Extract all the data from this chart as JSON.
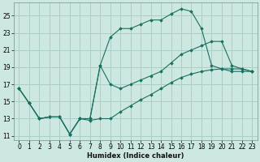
{
  "xlabel": "Humidex (Indice chaleur)",
  "background_color": "#cce8e0",
  "grid_color": "#aacfc8",
  "line_color": "#1a7060",
  "xlim": [
    -0.5,
    23.5
  ],
  "ylim": [
    10.5,
    26.5
  ],
  "xticks": [
    0,
    1,
    2,
    3,
    4,
    5,
    6,
    7,
    8,
    9,
    10,
    11,
    12,
    13,
    14,
    15,
    16,
    17,
    18,
    19,
    20,
    21,
    22,
    23
  ],
  "yticks": [
    11,
    13,
    15,
    17,
    19,
    21,
    23,
    25
  ],
  "lines": [
    {
      "x": [
        0,
        1,
        2,
        3,
        4,
        5,
        6,
        7,
        8,
        9,
        10,
        11,
        12,
        13,
        14,
        15,
        16,
        17,
        18,
        19,
        20,
        21,
        22,
        23
      ],
      "y": [
        16.5,
        14.8,
        13.0,
        13.2,
        13.2,
        11.2,
        13.0,
        13.0,
        19.2,
        22.5,
        23.5,
        23.5,
        24.0,
        24.5,
        24.5,
        25.2,
        25.8,
        25.5,
        23.5,
        19.2,
        18.8,
        18.5,
        18.5,
        18.5
      ]
    },
    {
      "x": [
        0,
        1,
        2,
        3,
        4,
        5,
        6,
        7,
        8,
        9,
        10,
        11,
        12,
        13,
        14,
        15,
        16,
        17,
        18,
        19,
        20,
        21,
        22,
        23
      ],
      "y": [
        16.5,
        14.8,
        13.0,
        13.2,
        13.2,
        11.2,
        13.0,
        13.0,
        19.2,
        17.0,
        16.5,
        17.0,
        17.5,
        18.0,
        18.5,
        19.5,
        20.5,
        21.0,
        21.5,
        22.0,
        22.0,
        19.2,
        18.8,
        18.5
      ]
    },
    {
      "x": [
        0,
        1,
        2,
        3,
        4,
        5,
        6,
        7,
        8,
        9,
        10,
        11,
        12,
        13,
        14,
        15,
        16,
        17,
        18,
        19,
        20,
        21,
        22,
        23
      ],
      "y": [
        16.5,
        14.8,
        13.0,
        13.2,
        13.2,
        11.2,
        13.0,
        12.8,
        13.0,
        13.0,
        13.8,
        14.5,
        15.2,
        15.8,
        16.5,
        17.2,
        17.8,
        18.2,
        18.5,
        18.7,
        18.8,
        18.8,
        18.8,
        18.5
      ]
    }
  ]
}
